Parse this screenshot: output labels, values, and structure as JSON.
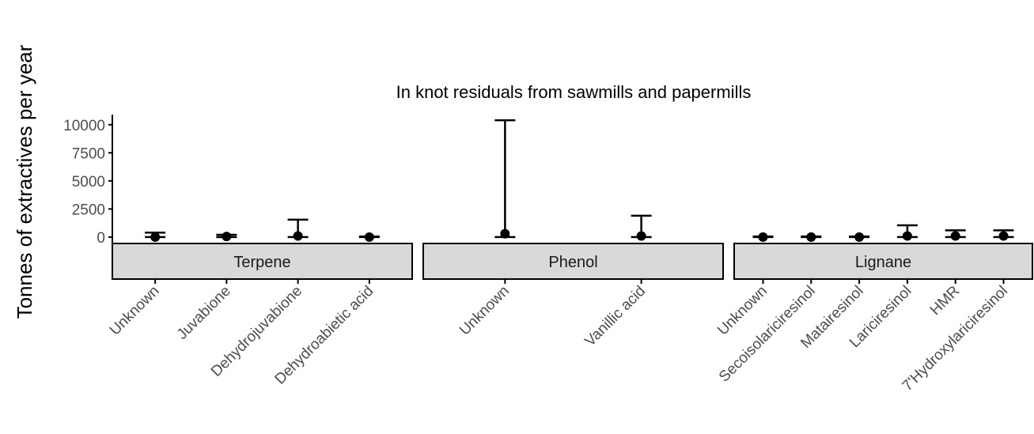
{
  "chart_data": {
    "type": "errorbar",
    "title": "In knot residuals from sawmills and papermills",
    "y_label": "Tonnes of extractives per year",
    "ylim": [
      -500,
      10900
    ],
    "yticks": [
      0,
      2500,
      5000,
      7500,
      10000
    ],
    "color": "#000000",
    "strip_color": "#d9d9d9",
    "facets": [
      {
        "name": "Terpene",
        "categories": [
          "Unknown",
          "Juvabione",
          "Dehydrojuvabione",
          "Dehydroabietic acid"
        ],
        "values": [
          0,
          50,
          100,
          0
        ],
        "lower": [
          0,
          0,
          0,
          0
        ],
        "upper": [
          400,
          200,
          1550,
          50
        ]
      },
      {
        "name": "Phenol",
        "categories": [
          "Unknown",
          "Vanillic acid"
        ],
        "values": [
          300,
          100
        ],
        "lower": [
          0,
          0
        ],
        "upper": [
          10400,
          1900
        ]
      },
      {
        "name": "Lignane",
        "categories": [
          "Unknown",
          "Secoisolariciresinol",
          "Matairesinol",
          "Lariciresinol",
          "HMR",
          "7'Hydroxylariciresinol"
        ],
        "values": [
          0,
          0,
          0,
          100,
          100,
          100
        ],
        "lower": [
          0,
          0,
          0,
          0,
          0,
          0
        ],
        "upper": [
          50,
          50,
          50,
          1050,
          600,
          600
        ]
      }
    ]
  }
}
